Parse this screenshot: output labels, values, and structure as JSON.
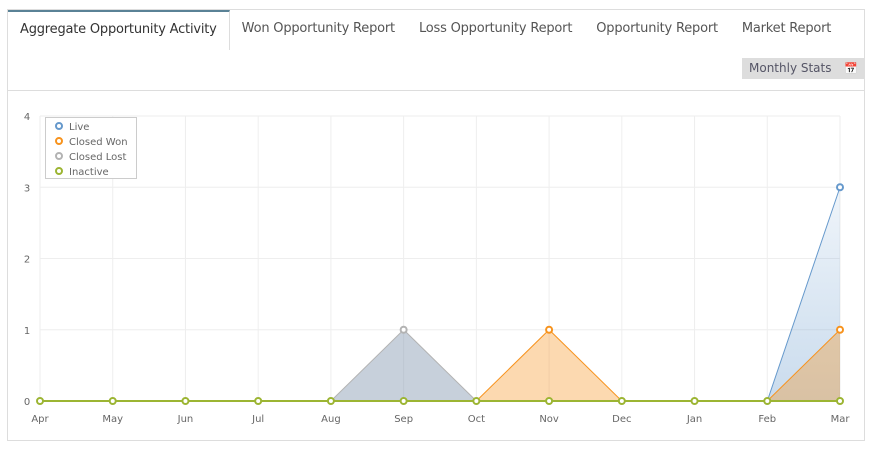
{
  "tabs": [
    "Aggregate Opportunity Activity",
    "Won Opportunity Report",
    "Loss Opportunity Report",
    "Opportunity Report",
    "Market Report"
  ],
  "active_tab": 0,
  "stats_button": {
    "label": "Monthly Stats",
    "icon": "calendar-icon"
  },
  "chart_data": {
    "type": "area",
    "categories": [
      "Apr",
      "May",
      "Jun",
      "Jul",
      "Aug",
      "Sep",
      "Oct",
      "Nov",
      "Dec",
      "Jan",
      "Feb",
      "Mar"
    ],
    "ylim": [
      0,
      4
    ],
    "yticks": [
      0,
      1,
      2,
      3,
      4
    ],
    "grid": true,
    "legend": "top-left",
    "series": [
      {
        "name": "Live",
        "color": "#6699cc",
        "values": [
          0,
          0,
          0,
          0,
          0,
          0,
          0,
          0,
          0,
          0,
          0,
          3
        ]
      },
      {
        "name": "Closed Won",
        "color": "#f7931e",
        "values": [
          0,
          0,
          0,
          0,
          0,
          0,
          0,
          1,
          0,
          0,
          0,
          1
        ]
      },
      {
        "name": "Closed Lost",
        "color": "#b3b3b3",
        "values": [
          0,
          0,
          0,
          0,
          0,
          1,
          0,
          0,
          0,
          0,
          0,
          0
        ]
      },
      {
        "name": "Inactive",
        "color": "#9cb533",
        "values": [
          0,
          0,
          0,
          0,
          0,
          0,
          0,
          0,
          0,
          0,
          0,
          0
        ]
      }
    ]
  }
}
